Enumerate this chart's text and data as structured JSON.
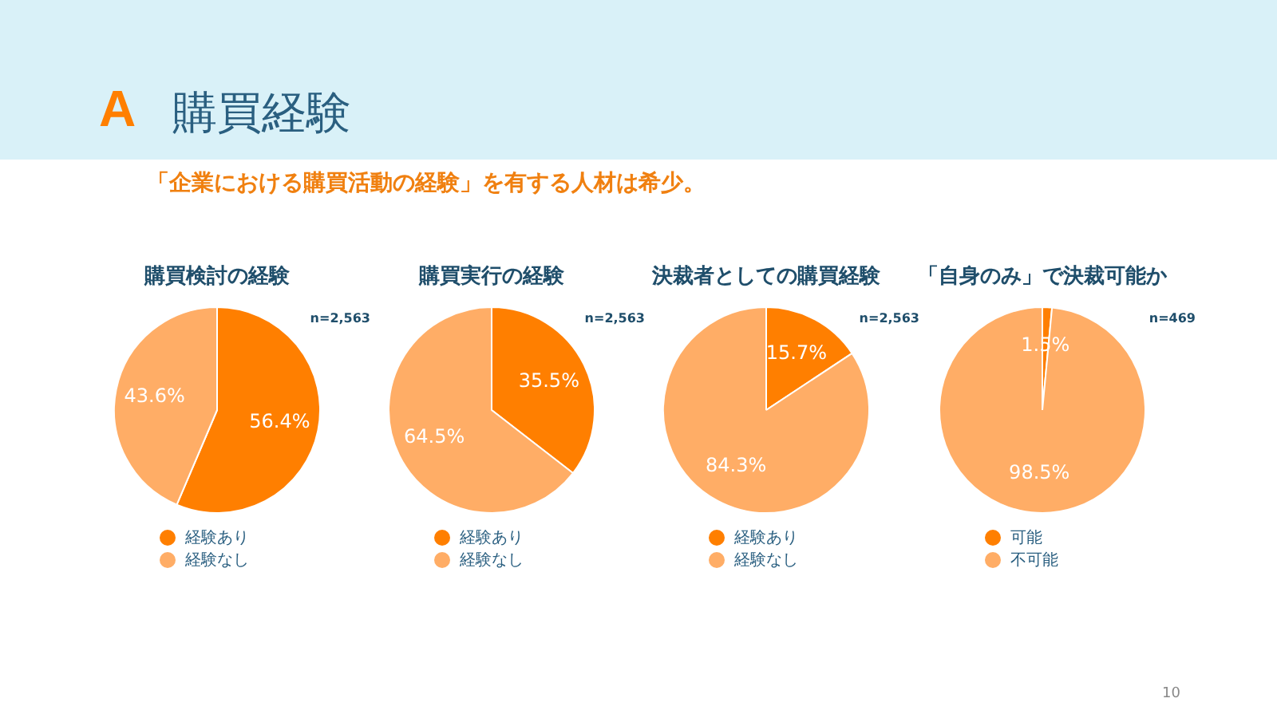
{
  "chart_data": [
    {
      "type": "pie",
      "title": "購買検討の経験",
      "categories": [
        "経験あり",
        "経験なし"
      ],
      "values": [
        56.4,
        43.6
      ],
      "value_labels": [
        "56.4%",
        "43.6%"
      ],
      "colors": [
        "#ff7f00",
        "#ffad66"
      ],
      "legend": "bottom",
      "annotations": [
        "n=2,563",
        "A",
        "購買経験",
        "「企業における購買活動の経験」を有する人材は希少。"
      ]
    },
    {
      "type": "pie",
      "title": "購買実行の経験",
      "categories": [
        "経験あり",
        "経験なし"
      ],
      "values": [
        35.5,
        64.5
      ],
      "value_labels": [
        "35.5%",
        "64.5%"
      ],
      "colors": [
        "#ff7f00",
        "#ffad66"
      ],
      "legend": "bottom",
      "annotations": [
        "n=2,563"
      ]
    },
    {
      "type": "pie",
      "title": "決裁者としての購買経験",
      "categories": [
        "経験あり",
        "経験なし"
      ],
      "values": [
        15.7,
        84.3
      ],
      "value_labels": [
        "15.7%",
        "84.3%"
      ],
      "colors": [
        "#ff7f00",
        "#ffad66"
      ],
      "legend": "bottom",
      "annotations": [
        "n=2,563"
      ]
    },
    {
      "type": "pie",
      "title": "「自身のみ」で決裁可能か",
      "categories": [
        "可能",
        "不可能"
      ],
      "values": [
        1.5,
        98.5
      ],
      "value_labels": [
        "1.5%",
        "98.5%"
      ],
      "colors": [
        "#ff7f00",
        "#ffad66"
      ],
      "legend": "bottom",
      "annotations": [
        "n=469",
        "10"
      ]
    }
  ]
}
